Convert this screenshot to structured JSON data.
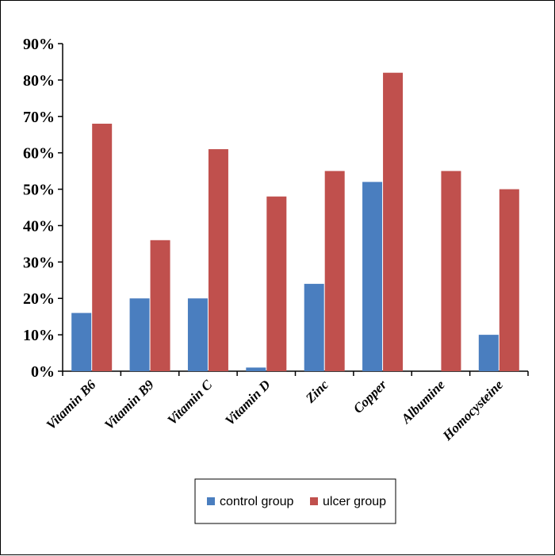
{
  "chart_data": {
    "type": "bar",
    "categories": [
      "Vitamin B6",
      "Vitamin B9",
      "Vitamin C",
      "Vitamin D",
      "Zinc",
      "Copper",
      "Albumine",
      "Homocysteine"
    ],
    "series": [
      {
        "name": "control group",
        "values": [
          16,
          20,
          20,
          1,
          24,
          52,
          0,
          10
        ],
        "color": "#4a7ebf"
      },
      {
        "name": "ulcer group",
        "values": [
          68,
          36,
          61,
          48,
          55,
          82,
          55,
          50
        ],
        "color": "#c0504d"
      }
    ],
    "yticks": [
      "0%",
      "10%",
      "20%",
      "30%",
      "40%",
      "50%",
      "60%",
      "70%",
      "80%",
      "90%"
    ],
    "ylim": [
      0,
      90
    ],
    "grid": false,
    "legend_position": "bottom"
  }
}
